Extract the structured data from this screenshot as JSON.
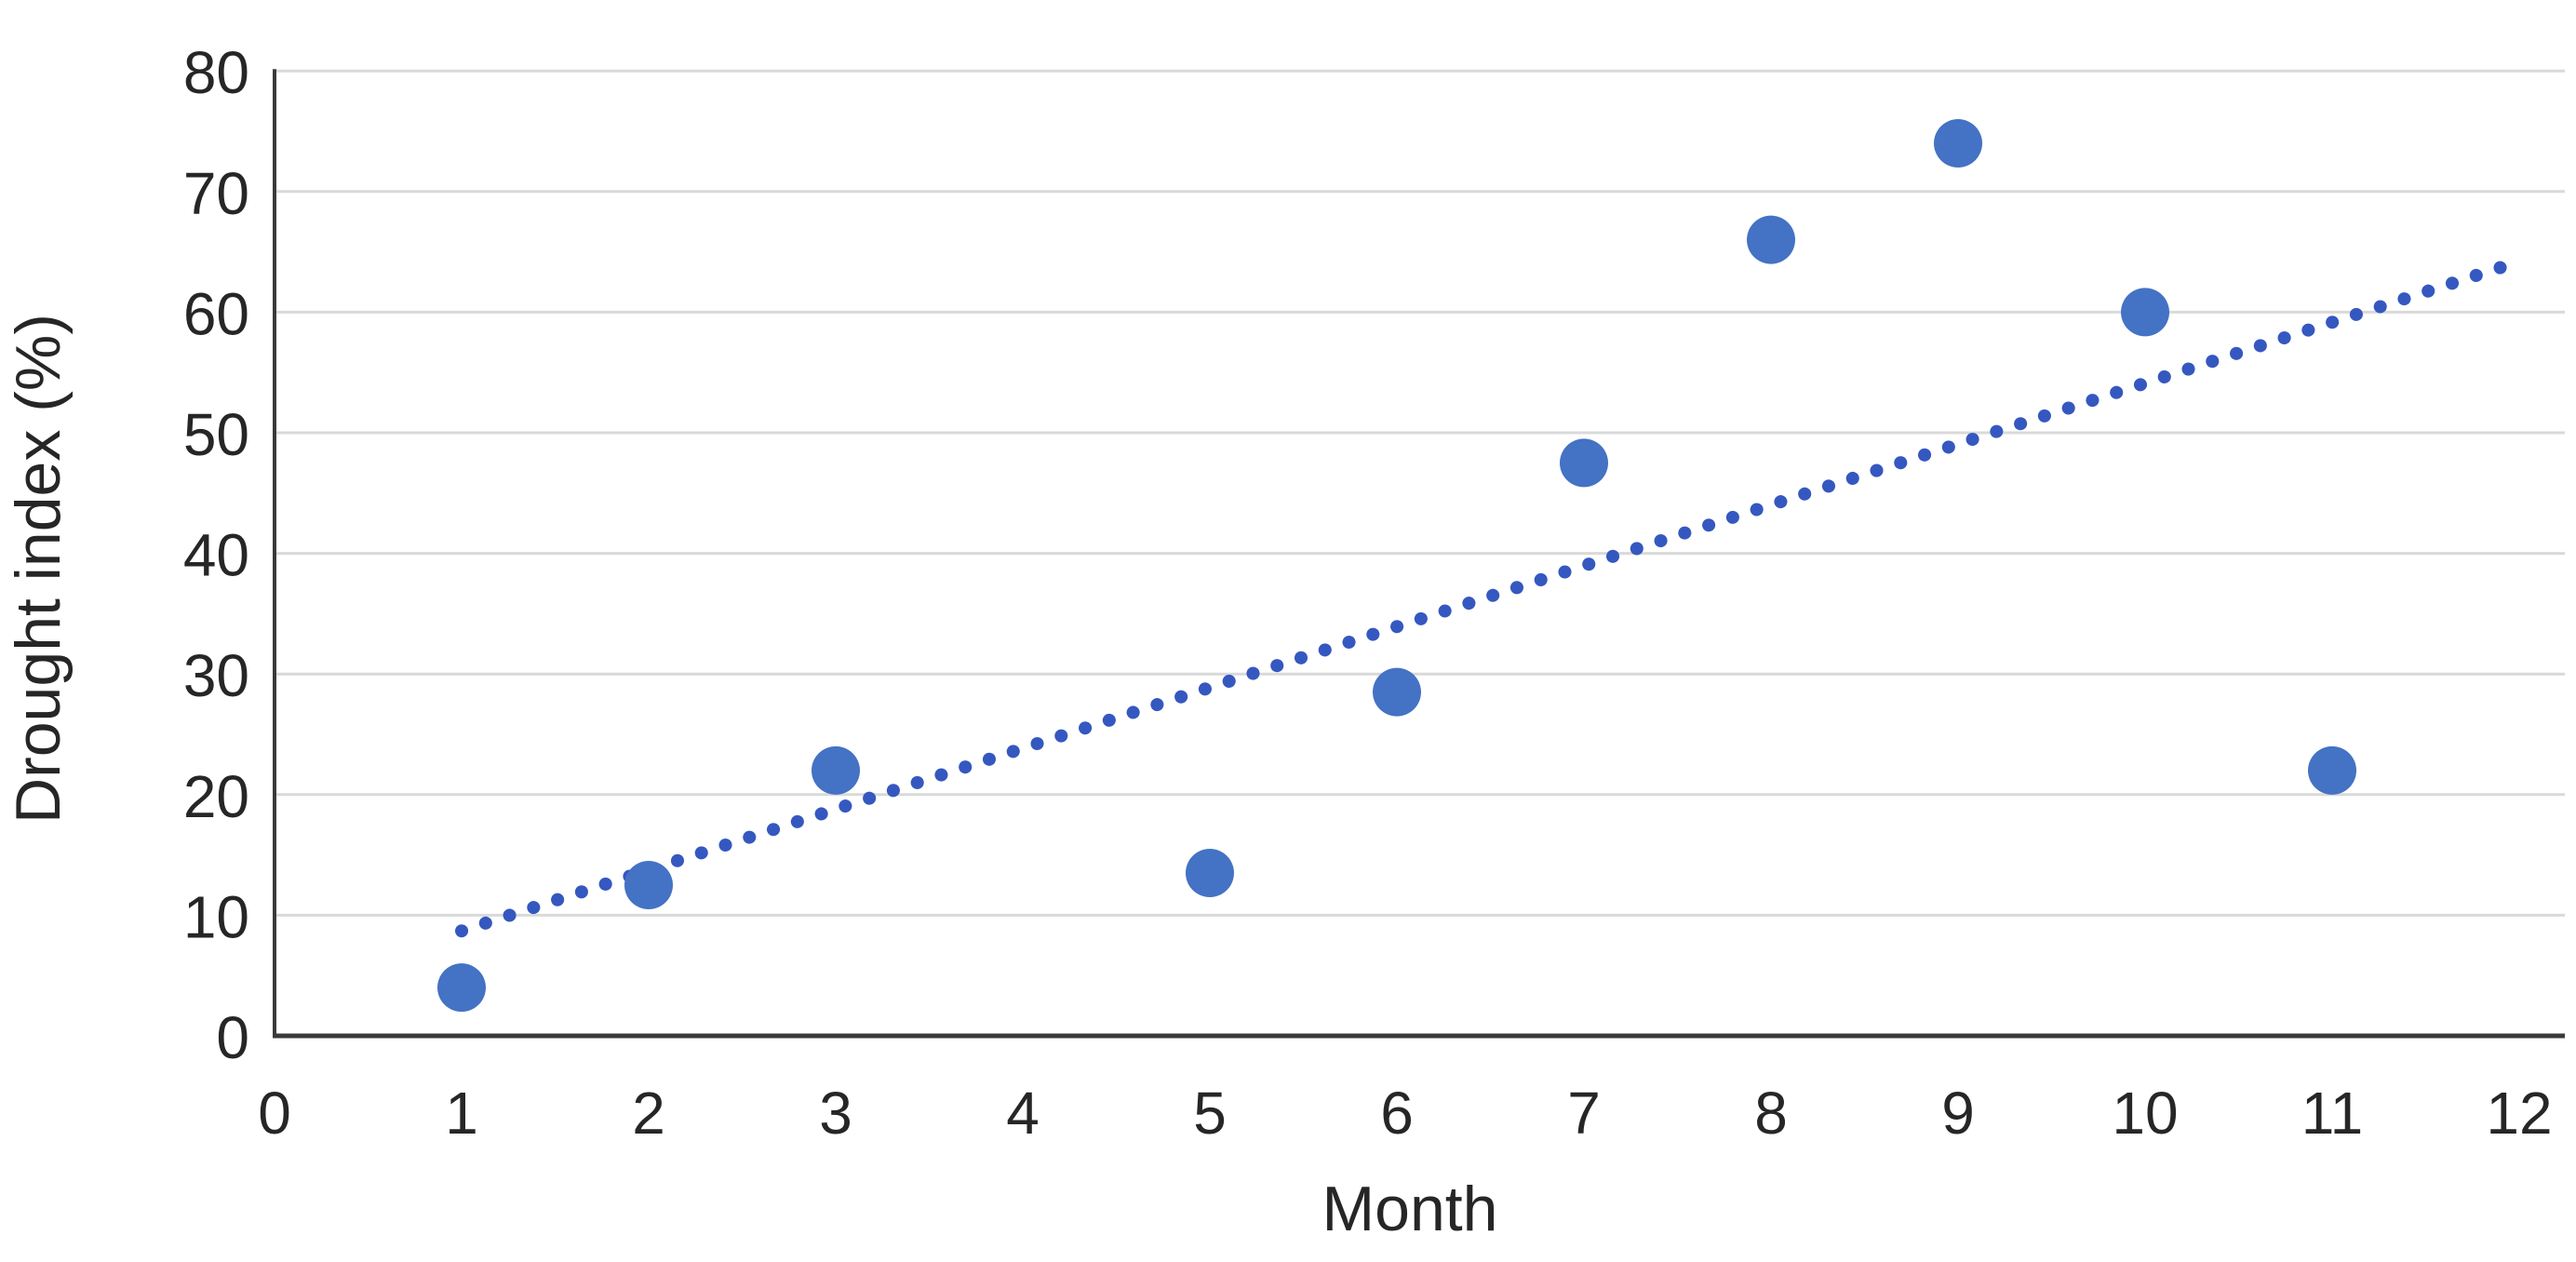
{
  "chart_data": {
    "type": "scatter",
    "title": "",
    "xlabel": "Month",
    "ylabel": "Drought index (%)",
    "x": [
      1,
      2,
      3,
      5,
      6,
      7,
      8,
      9,
      10,
      11
    ],
    "y": [
      4,
      12.5,
      22,
      13.5,
      28.5,
      47.5,
      66,
      74,
      60,
      22
    ],
    "xlim": [
      0,
      12
    ],
    "ylim": [
      0,
      80
    ],
    "x_ticks": [
      "0",
      "1",
      "2",
      "3",
      "4",
      "5",
      "6",
      "7",
      "8",
      "9",
      "10",
      "11",
      "12"
    ],
    "y_ticks": [
      "0",
      "10",
      "20",
      "30",
      "40",
      "50",
      "60",
      "70",
      "80"
    ],
    "grid": "horizontal-only",
    "legend_position": "none",
    "trendline": {
      "style": "dotted",
      "x1": 1.0,
      "y1": 8.7,
      "x2": 11.9,
      "y2": 63.7
    },
    "colors": {
      "point": "#4472C4",
      "trendline": "#3558C0",
      "gridline": "#D9D9D9",
      "axis_line": "#3A3A3A",
      "tick_text": "#262626",
      "title_text": "#262626",
      "background": "#FFFFFF"
    }
  }
}
